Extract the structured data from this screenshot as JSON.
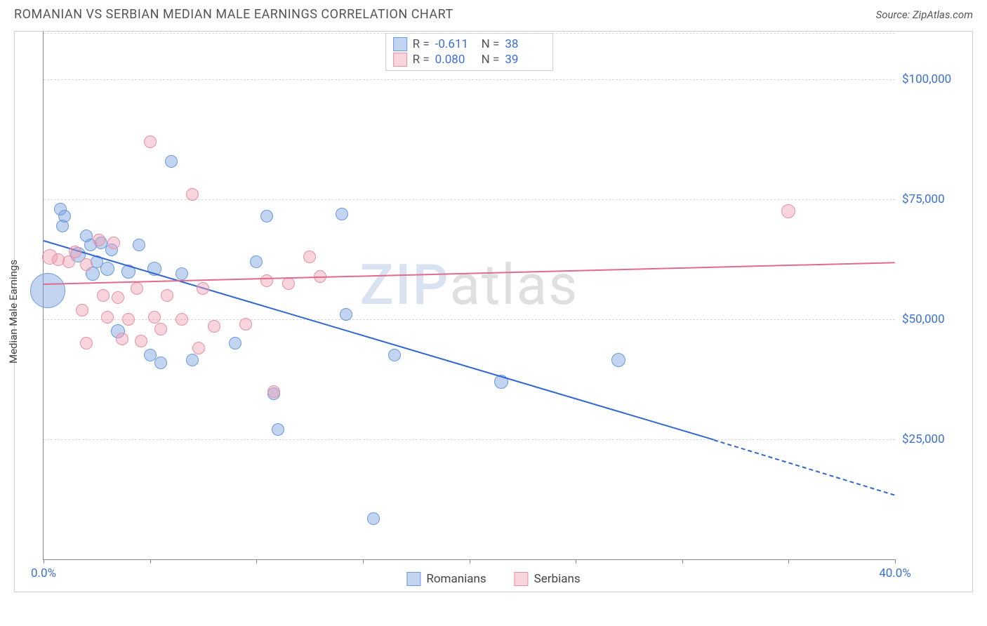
{
  "header": {
    "title": "ROMANIAN VS SERBIAN MEDIAN MALE EARNINGS CORRELATION CHART",
    "source": "Source: ZipAtlas.com"
  },
  "watermark": {
    "part1": "ZIP",
    "part2": "atlas"
  },
  "chart": {
    "type": "scatter",
    "ylabel": "Median Male Earnings",
    "background_color": "#ffffff",
    "grid_color": "#d8d8d8",
    "axis_color": "#888888",
    "xlim": [
      0,
      40
    ],
    "ylim": [
      0,
      110000
    ],
    "xtick_positions": [
      0,
      5,
      10,
      15,
      20,
      25,
      30,
      35,
      40
    ],
    "xtick_labels": {
      "0": "0.0%",
      "40": "40.0%"
    },
    "ytick_positions": [
      25000,
      50000,
      75000,
      100000
    ],
    "ytick_labels": [
      "$25,000",
      "$50,000",
      "$75,000",
      "$100,000"
    ],
    "series": [
      {
        "name": "Romanians",
        "fill": "rgba(120,160,220,0.45)",
        "stroke": "#6a9be0",
        "line_color": "#2f66d0",
        "trend": {
          "x1": 0,
          "y1": 66500,
          "x2": 31.5,
          "y2": 25000,
          "x2_ext": 40,
          "y2_ext": 13500
        },
        "R": "-0.611",
        "N": "38",
        "points": [
          {
            "x": 0.2,
            "y": 56000,
            "r": 25
          },
          {
            "x": 0.8,
            "y": 73000,
            "r": 9
          },
          {
            "x": 0.9,
            "y": 69500,
            "r": 9
          },
          {
            "x": 1.0,
            "y": 71500,
            "r": 9
          },
          {
            "x": 1.6,
            "y": 63500,
            "r": 11
          },
          {
            "x": 2.0,
            "y": 67500,
            "r": 9
          },
          {
            "x": 2.2,
            "y": 65500,
            "r": 9
          },
          {
            "x": 2.3,
            "y": 59500,
            "r": 10
          },
          {
            "x": 2.5,
            "y": 62000,
            "r": 9
          },
          {
            "x": 2.7,
            "y": 66000,
            "r": 9
          },
          {
            "x": 3.0,
            "y": 60500,
            "r": 10
          },
          {
            "x": 3.2,
            "y": 64500,
            "r": 9
          },
          {
            "x": 3.5,
            "y": 47500,
            "r": 10
          },
          {
            "x": 4.0,
            "y": 60000,
            "r": 10
          },
          {
            "x": 4.5,
            "y": 65500,
            "r": 9
          },
          {
            "x": 5.0,
            "y": 42500,
            "r": 9
          },
          {
            "x": 5.2,
            "y": 60500,
            "r": 10
          },
          {
            "x": 5.5,
            "y": 41000,
            "r": 9
          },
          {
            "x": 6.0,
            "y": 83000,
            "r": 9
          },
          {
            "x": 6.5,
            "y": 59500,
            "r": 9
          },
          {
            "x": 7.0,
            "y": 41500,
            "r": 9
          },
          {
            "x": 9.0,
            "y": 45000,
            "r": 9
          },
          {
            "x": 10.0,
            "y": 62000,
            "r": 9
          },
          {
            "x": 10.5,
            "y": 71500,
            "r": 9
          },
          {
            "x": 10.8,
            "y": 34500,
            "r": 9
          },
          {
            "x": 11.0,
            "y": 27000,
            "r": 9
          },
          {
            "x": 14.0,
            "y": 72000,
            "r": 9
          },
          {
            "x": 14.2,
            "y": 51000,
            "r": 9
          },
          {
            "x": 15.5,
            "y": 8500,
            "r": 9
          },
          {
            "x": 16.5,
            "y": 42500,
            "r": 9
          },
          {
            "x": 21.5,
            "y": 37000,
            "r": 10
          },
          {
            "x": 27.0,
            "y": 41500,
            "r": 10
          }
        ]
      },
      {
        "name": "Serbians",
        "fill": "rgba(240,160,180,0.45)",
        "stroke": "#e88fa6",
        "line_color": "#e36a8f",
        "trend": {
          "x1": 0,
          "y1": 57500,
          "x2": 40,
          "y2": 62000
        },
        "R": "0.080",
        "N": "39",
        "points": [
          {
            "x": 0.3,
            "y": 63000,
            "r": 11
          },
          {
            "x": 0.7,
            "y": 62500,
            "r": 9
          },
          {
            "x": 1.2,
            "y": 62000,
            "r": 9
          },
          {
            "x": 1.5,
            "y": 64000,
            "r": 9
          },
          {
            "x": 1.8,
            "y": 52000,
            "r": 9
          },
          {
            "x": 2.0,
            "y": 61500,
            "r": 9
          },
          {
            "x": 2.0,
            "y": 45000,
            "r": 9
          },
          {
            "x": 2.6,
            "y": 66500,
            "r": 9
          },
          {
            "x": 2.8,
            "y": 55000,
            "r": 9
          },
          {
            "x": 3.0,
            "y": 50500,
            "r": 9
          },
          {
            "x": 3.3,
            "y": 66000,
            "r": 9
          },
          {
            "x": 3.5,
            "y": 54500,
            "r": 9
          },
          {
            "x": 3.7,
            "y": 46000,
            "r": 9
          },
          {
            "x": 4.0,
            "y": 50000,
            "r": 9
          },
          {
            "x": 4.4,
            "y": 56500,
            "r": 9
          },
          {
            "x": 4.6,
            "y": 45500,
            "r": 9
          },
          {
            "x": 5.0,
            "y": 87000,
            "r": 9
          },
          {
            "x": 5.2,
            "y": 50500,
            "r": 9
          },
          {
            "x": 5.5,
            "y": 48000,
            "r": 9
          },
          {
            "x": 5.8,
            "y": 55000,
            "r": 9
          },
          {
            "x": 6.5,
            "y": 50000,
            "r": 9
          },
          {
            "x": 7.0,
            "y": 76000,
            "r": 9
          },
          {
            "x": 7.3,
            "y": 44000,
            "r": 9
          },
          {
            "x": 7.5,
            "y": 56500,
            "r": 9
          },
          {
            "x": 8.0,
            "y": 48500,
            "r": 9
          },
          {
            "x": 9.5,
            "y": 49000,
            "r": 9
          },
          {
            "x": 10.5,
            "y": 58000,
            "r": 9
          },
          {
            "x": 10.8,
            "y": 35000,
            "r": 9
          },
          {
            "x": 11.5,
            "y": 57500,
            "r": 9
          },
          {
            "x": 12.5,
            "y": 63000,
            "r": 9
          },
          {
            "x": 13.0,
            "y": 59000,
            "r": 9
          },
          {
            "x": 35.0,
            "y": 72500,
            "r": 10
          }
        ]
      }
    ],
    "legend": {
      "series1": "Romanians",
      "series2": "Serbians"
    }
  }
}
